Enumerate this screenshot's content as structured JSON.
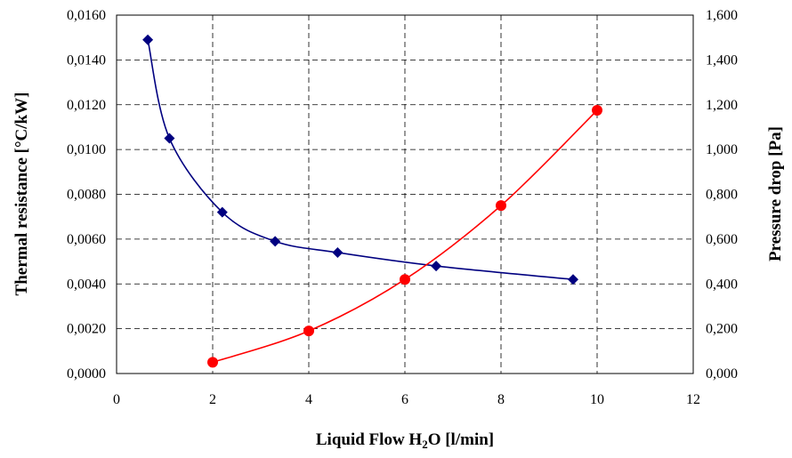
{
  "chart_data": {
    "type": "line",
    "title": "",
    "xlabel": "Liquid Flow H2O [l/min]",
    "xlabel_main": "Liquid Flow H",
    "xlabel_sub": "2",
    "xlabel_tail": "O [l/min]",
    "ylabel_left": "Thermal resistance [°C/kW]",
    "ylabel_right": "Pressure drop [Pa]",
    "xlim": [
      0,
      12
    ],
    "ylim_left": [
      0,
      0.016
    ],
    "ylim_right": [
      0,
      1.6
    ],
    "grid": true,
    "x_ticks": [
      "0",
      "2",
      "4",
      "6",
      "8",
      "10",
      "12"
    ],
    "y_left_ticks": [
      "0,0000",
      "0,0020",
      "0,0040",
      "0,0060",
      "0,0080",
      "0,0100",
      "0,0120",
      "0,0140",
      "0,0160"
    ],
    "y_right_ticks": [
      "0,000",
      "0,200",
      "0,400",
      "0,600",
      "0,800",
      "1,000",
      "1,200",
      "1,400",
      "1,600"
    ],
    "series": [
      {
        "axis": "left",
        "color": "#000080",
        "marker": "diamond",
        "x": [
          0.65,
          1.1,
          2.2,
          3.3,
          4.6,
          6.65,
          9.5
        ],
        "y": [
          0.0149,
          0.0105,
          0.0072,
          0.0059,
          0.0054,
          0.0048,
          0.0042
        ]
      },
      {
        "axis": "right",
        "color": "#ff0000",
        "marker": "circle",
        "x": [
          2,
          4,
          6,
          8,
          10
        ],
        "y": [
          0.05,
          0.19,
          0.42,
          0.75,
          1.175
        ]
      }
    ]
  }
}
